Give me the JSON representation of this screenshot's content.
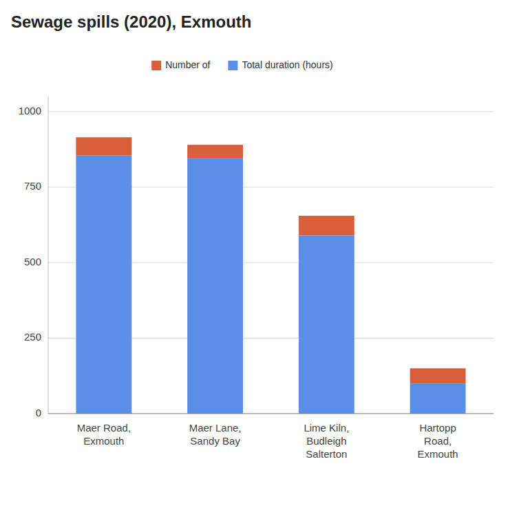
{
  "chart_data": {
    "type": "bar",
    "stacked": true,
    "title": "Sewage spills (2020), Exmouth",
    "categories": [
      "Maer Road,\nExmouth",
      "Maer Lane,\nSandy Bay",
      "Lime Kiln,\nBudleigh\nSalterton",
      "Hartopp\nRoad,\nExmouth"
    ],
    "series": [
      {
        "name": "Total duration (hours)",
        "color": "#5B8EE6",
        "values": [
          855,
          845,
          590,
          100
        ]
      },
      {
        "name": "Number of",
        "color": "#D95F3B",
        "values": [
          60,
          45,
          65,
          50
        ]
      }
    ],
    "ylim": [
      0,
      1050
    ],
    "yticks": [
      0,
      250,
      500,
      750,
      1000
    ],
    "grid": true,
    "legend": "top"
  }
}
